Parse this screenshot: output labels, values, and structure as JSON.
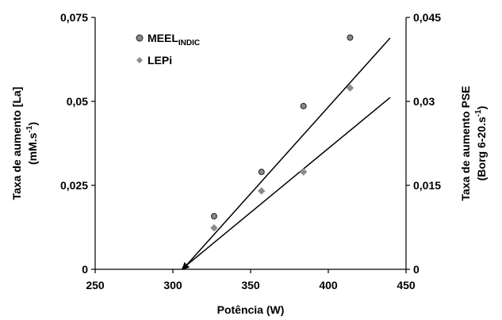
{
  "chart_data": {
    "type": "scatter",
    "xlabel": "Potência (W)",
    "ylabel": {
      "text": "Taxa de aumento [La]",
      "unit": "(mM.s",
      "unit_sup": "-1",
      "unit_end": ")"
    },
    "y2label": {
      "text": "Taxa de aumento PSE",
      "unit": "(Borg 6-20.s",
      "unit_sup": "-1",
      "unit_end": ")"
    },
    "xlim": [
      250,
      450
    ],
    "xticks": [
      250,
      300,
      350,
      400,
      450
    ],
    "ylim": [
      0,
      0.075
    ],
    "yticks": [
      0,
      {
        "value": 0.025,
        "label": "0,025"
      },
      {
        "value": 0.05,
        "label": "0,05"
      },
      {
        "value": 0.075,
        "label": "0,075"
      }
    ],
    "y2lim": [
      0,
      0.045
    ],
    "y2ticks": [
      0,
      {
        "value": 0.015,
        "label": "0,015"
      },
      {
        "value": 0.03,
        "label": "0,03"
      },
      {
        "value": 0.045,
        "label": "0,045"
      }
    ],
    "series": [
      {
        "name": "MEEL",
        "name_subscript": "INDIC",
        "color": "#888888",
        "marker": "circle",
        "axis": "y",
        "x": [
          326.5,
          357,
          384,
          414
        ],
        "values": [
          0.0158,
          0.029,
          0.0486,
          0.069
        ],
        "trend_x": [
          308.7,
          439.8
        ],
        "trend_values": [
          0.0012,
          0.0689
        ]
      },
      {
        "name": "LEPi",
        "color": "#8c8c8c",
        "marker": "diamond",
        "axis": "y2",
        "x": [
          326.5,
          357,
          384,
          414
        ],
        "values": [
          0.0074,
          0.014,
          0.0174,
          0.0324
        ],
        "trend_x": [
          308.7,
          439.8
        ],
        "trend_values": [
          0.0007,
          0.0307
        ]
      }
    ]
  }
}
